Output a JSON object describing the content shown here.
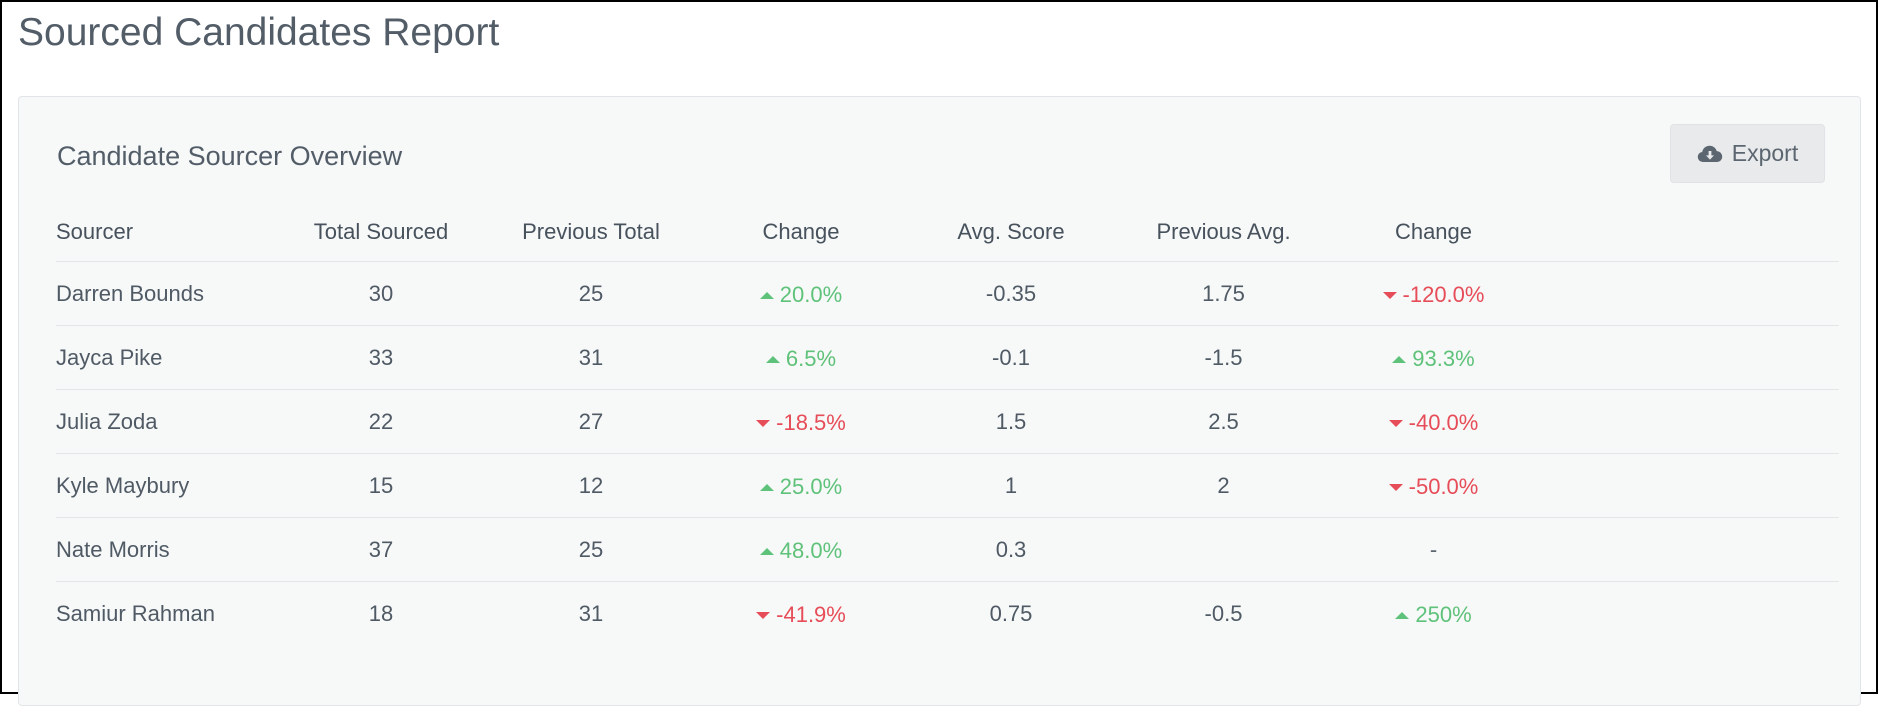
{
  "page": {
    "title": "Sourced Candidates Report"
  },
  "panel": {
    "title": "Candidate Sourcer Overview",
    "export_label": "Export",
    "export_icon": "cloud-download-icon"
  },
  "table": {
    "headers": [
      "Sourcer",
      "Total Sourced",
      "Previous Total",
      "Change",
      "Avg. Score",
      "Previous Avg.",
      "Change"
    ],
    "rows": [
      {
        "sourcer": "Darren Bounds",
        "total": "30",
        "previous_total": "25",
        "change": "20.0%",
        "change_dir": "up",
        "avg": "-0.35",
        "previous_avg": "1.75",
        "avg_change": "-120.0%",
        "avg_change_dir": "down"
      },
      {
        "sourcer": "Jayca Pike",
        "total": "33",
        "previous_total": "31",
        "change": "6.5%",
        "change_dir": "up",
        "avg": "-0.1",
        "previous_avg": "-1.5",
        "avg_change": "93.3%",
        "avg_change_dir": "up"
      },
      {
        "sourcer": "Julia Zoda",
        "total": "22",
        "previous_total": "27",
        "change": "-18.5%",
        "change_dir": "down",
        "avg": "1.5",
        "previous_avg": "2.5",
        "avg_change": "-40.0%",
        "avg_change_dir": "down"
      },
      {
        "sourcer": "Kyle Maybury",
        "total": "15",
        "previous_total": "12",
        "change": "25.0%",
        "change_dir": "up",
        "avg": "1",
        "previous_avg": "2",
        "avg_change": "-50.0%",
        "avg_change_dir": "down"
      },
      {
        "sourcer": "Nate Morris",
        "total": "37",
        "previous_total": "25",
        "change": "48.0%",
        "change_dir": "up",
        "avg": "0.3",
        "previous_avg": "",
        "avg_change": "-",
        "avg_change_dir": "none"
      },
      {
        "sourcer": "Samiur Rahman",
        "total": "18",
        "previous_total": "31",
        "change": "-41.9%",
        "change_dir": "down",
        "avg": "0.75",
        "previous_avg": "-0.5",
        "avg_change": "250%",
        "avg_change_dir": "up"
      }
    ]
  },
  "colors": {
    "up": "#5fc27a",
    "down": "#e64d58",
    "title": "#525d68",
    "panel_bg": "#f7f8f8"
  }
}
